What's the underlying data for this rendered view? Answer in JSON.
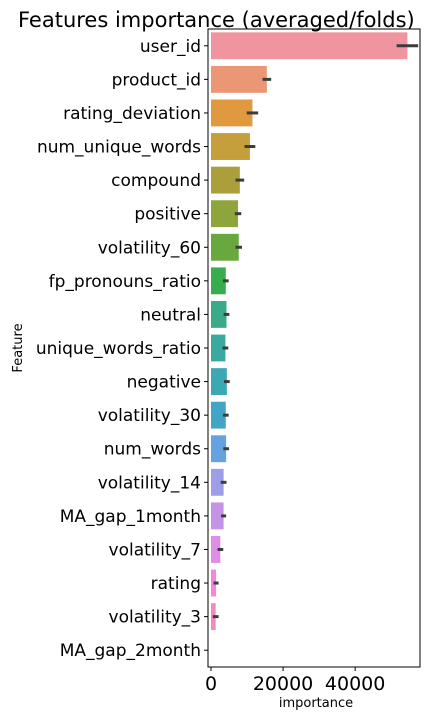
{
  "chart_data": {
    "type": "bar",
    "orientation": "horizontal",
    "title": "Features importance (averaged/folds)",
    "xlabel": "importance",
    "ylabel": "Feature",
    "categories": [
      "user_id",
      "product_id",
      "rating_deviation",
      "num_unique_words",
      "compound",
      "positive",
      "volatility_60",
      "fp_pronouns_ratio",
      "neutral",
      "unique_words_ratio",
      "negative",
      "volatility_30",
      "num_words",
      "volatility_14",
      "MA_gap_1month",
      "volatility_7",
      "rating",
      "volatility_3",
      "MA_gap_2month"
    ],
    "values": [
      54500,
      15500,
      11500,
      10800,
      8000,
      7500,
      7700,
      4100,
      4300,
      4000,
      4400,
      4100,
      4200,
      3500,
      3500,
      2600,
      1400,
      1300,
      0
    ],
    "errors": [
      3000,
      1200,
      1600,
      1500,
      1200,
      900,
      900,
      800,
      800,
      800,
      800,
      800,
      800,
      800,
      700,
      800,
      700,
      800,
      0
    ],
    "colors": [
      "#f0949f",
      "#eb9674",
      "#e1993f",
      "#c49f3c",
      "#ab9e3b",
      "#8ea53c",
      "#69a83e",
      "#37ad4d",
      "#3aaa89",
      "#3aa9a0",
      "#3ca8b4",
      "#43a5c6",
      "#65a3df",
      "#9e9de7",
      "#c493e6",
      "#df8ee5",
      "#f189d8",
      "#f08cbd",
      "#ef90aa"
    ],
    "xlim": [
      0,
      58000
    ],
    "xticks": [
      0,
      20000,
      40000
    ],
    "xtick_labels": [
      "0",
      "20000",
      "40000"
    ]
  }
}
